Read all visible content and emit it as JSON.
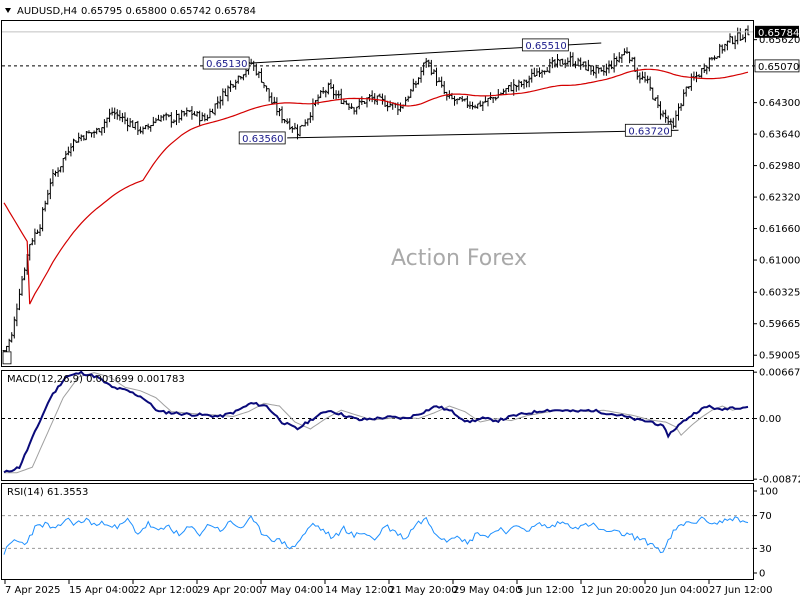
{
  "chart_data": [
    {
      "type": "ohlc",
      "symbol_header": "AUDUSD,H4",
      "ohlc_header": "0.65795 0.65800 0.65742 0.65784",
      "watermark": "Action Forex",
      "y_ticks": [
        "0.65620",
        "0.65070",
        "0.64300",
        "0.63640",
        "0.62980",
        "0.62320",
        "0.61660",
        "0.61000",
        "0.60325",
        "0.59665",
        "0.59005"
      ],
      "y_range": [
        0.588,
        0.6599
      ],
      "last_price": "0.65784",
      "hline_price": "0.65070",
      "hline_label": "0.65070",
      "x_ticks": [
        "7 Apr 2025",
        "15 Apr 04:00",
        "22 Apr 12:00",
        "29 Apr 20:00",
        "7 May 04:00",
        "14 May 12:00",
        "21 May 20:00",
        "29 May 04:00",
        "5 Jun 12:00",
        "12 Jun 20:00",
        "20 Jun 04:00",
        "27 Jun 12:00"
      ],
      "bar_count": 290,
      "close_path": [
        [
          0,
          0.591
        ],
        [
          3,
          0.594
        ],
        [
          6,
          0.6035
        ],
        [
          10,
          0.6135
        ],
        [
          14,
          0.6175
        ],
        [
          18,
          0.6265
        ],
        [
          22,
          0.63
        ],
        [
          26,
          0.6345
        ],
        [
          30,
          0.636
        ],
        [
          36,
          0.637
        ],
        [
          42,
          0.641
        ],
        [
          48,
          0.639
        ],
        [
          54,
          0.637
        ],
        [
          60,
          0.64
        ],
        [
          66,
          0.6395
        ],
        [
          72,
          0.641
        ],
        [
          78,
          0.6395
        ],
        [
          84,
          0.644
        ],
        [
          90,
          0.648
        ],
        [
          94,
          0.65
        ],
        [
          96,
          0.6513
        ],
        [
          100,
          0.648
        ],
        [
          104,
          0.643
        ],
        [
          108,
          0.64
        ],
        [
          112,
          0.638
        ],
        [
          114,
          0.637
        ],
        [
          118,
          0.64
        ],
        [
          122,
          0.644
        ],
        [
          126,
          0.646
        ],
        [
          130,
          0.644
        ],
        [
          136,
          0.642
        ],
        [
          142,
          0.644
        ],
        [
          148,
          0.643
        ],
        [
          154,
          0.642
        ],
        [
          160,
          0.647
        ],
        [
          164,
          0.652
        ],
        [
          168,
          0.648
        ],
        [
          172,
          0.644
        ],
        [
          178,
          0.643
        ],
        [
          184,
          0.6425
        ],
        [
          190,
          0.644
        ],
        [
          196,
          0.646
        ],
        [
          202,
          0.647
        ],
        [
          208,
          0.65
        ],
        [
          214,
          0.651
        ],
        [
          220,
          0.652
        ],
        [
          226,
          0.6505
        ],
        [
          232,
          0.649
        ],
        [
          238,
          0.652
        ],
        [
          242,
          0.654
        ],
        [
          246,
          0.649
        ],
        [
          250,
          0.647
        ],
        [
          254,
          0.642
        ],
        [
          258,
          0.639
        ],
        [
          260,
          0.6375
        ],
        [
          262,
          0.642
        ],
        [
          266,
          0.647
        ],
        [
          270,
          0.649
        ],
        [
          274,
          0.652
        ],
        [
          278,
          0.654
        ],
        [
          282,
          0.656
        ],
        [
          286,
          0.657
        ],
        [
          289,
          0.6578
        ]
      ],
      "annotations": [
        {
          "label": "0.65130",
          "price": 0.6513,
          "bar": 96
        },
        {
          "label": "0.63560",
          "price": 0.6356,
          "bar": 110
        },
        {
          "label": "0.65510",
          "price": 0.6551,
          "bar": 220
        },
        {
          "label": "0.63720",
          "price": 0.6372,
          "bar": 260
        },
        {
          "label": "",
          "price": 0.5895,
          "bar": 0
        }
      ],
      "channel_upper": [
        [
          96,
          0.6513
        ],
        [
          232,
          0.6555
        ]
      ],
      "channel_lower": [
        [
          110,
          0.6356
        ],
        [
          262,
          0.6372
        ]
      ],
      "colors": {
        "candle": "#000000",
        "ma": "#d40000",
        "hline": "#000000"
      }
    },
    {
      "type": "line",
      "title": "MACD(12,26,9) 0.001699 0.001783",
      "y_ticks": [
        "0.006675",
        "0.00",
        "-0.008724"
      ],
      "y_range": [
        -0.0087,
        0.0067
      ],
      "macd_path": [
        [
          0,
          -0.0078
        ],
        [
          6,
          -0.007
        ],
        [
          12,
          -0.002
        ],
        [
          18,
          0.003
        ],
        [
          24,
          0.006
        ],
        [
          30,
          0.0066
        ],
        [
          36,
          0.006
        ],
        [
          42,
          0.0045
        ],
        [
          48,
          0.004
        ],
        [
          54,
          0.003
        ],
        [
          60,
          0.001
        ],
        [
          66,
          0.0008
        ],
        [
          72,
          0.0006
        ],
        [
          78,
          0.0005
        ],
        [
          84,
          0.0003
        ],
        [
          90,
          0.001
        ],
        [
          96,
          0.0022
        ],
        [
          102,
          0.0018
        ],
        [
          108,
          -0.0005
        ],
        [
          114,
          -0.0015
        ],
        [
          120,
          0.0
        ],
        [
          126,
          0.0012
        ],
        [
          132,
          0.0005
        ],
        [
          138,
          -0.0002
        ],
        [
          144,
          0.0
        ],
        [
          150,
          0.0002
        ],
        [
          156,
          0.0
        ],
        [
          162,
          0.0008
        ],
        [
          168,
          0.0018
        ],
        [
          174,
          0.001
        ],
        [
          180,
          -0.0005
        ],
        [
          186,
          0.0
        ],
        [
          192,
          -0.0003
        ],
        [
          198,
          0.0004
        ],
        [
          204,
          0.0008
        ],
        [
          210,
          0.0012
        ],
        [
          216,
          0.0012
        ],
        [
          222,
          0.001
        ],
        [
          228,
          0.0012
        ],
        [
          234,
          0.0008
        ],
        [
          240,
          0.0004
        ],
        [
          246,
          -0.0002
        ],
        [
          252,
          -0.0005
        ],
        [
          256,
          -0.0012
        ],
        [
          258,
          -0.0024
        ],
        [
          262,
          -0.001
        ],
        [
          266,
          0.0002
        ],
        [
          270,
          0.0012
        ],
        [
          274,
          0.0018
        ],
        [
          278,
          0.0012
        ],
        [
          282,
          0.0016
        ],
        [
          286,
          0.0016
        ],
        [
          289,
          0.0017
        ]
      ],
      "colors": {
        "macd": "#0a0a7a",
        "signal": "#a0a0a0"
      }
    },
    {
      "type": "line",
      "title": "RSI(14) 61.3553",
      "y_ticks": [
        "100",
        "70",
        "30",
        "0"
      ],
      "y_range": [
        0,
        100
      ],
      "rsi_path": [
        [
          0,
          25
        ],
        [
          4,
          40
        ],
        [
          8,
          35
        ],
        [
          12,
          55
        ],
        [
          16,
          60
        ],
        [
          20,
          52
        ],
        [
          24,
          66
        ],
        [
          28,
          60
        ],
        [
          32,
          65
        ],
        [
          36,
          58
        ],
        [
          40,
          62
        ],
        [
          44,
          54
        ],
        [
          48,
          65
        ],
        [
          52,
          48
        ],
        [
          56,
          60
        ],
        [
          60,
          50
        ],
        [
          64,
          58
        ],
        [
          68,
          45
        ],
        [
          72,
          56
        ],
        [
          76,
          48
        ],
        [
          80,
          60
        ],
        [
          84,
          52
        ],
        [
          88,
          62
        ],
        [
          92,
          55
        ],
        [
          96,
          66
        ],
        [
          100,
          50
        ],
        [
          104,
          42
        ],
        [
          108,
          38
        ],
        [
          112,
          30
        ],
        [
          116,
          45
        ],
        [
          120,
          60
        ],
        [
          124,
          52
        ],
        [
          128,
          42
        ],
        [
          132,
          55
        ],
        [
          136,
          45
        ],
        [
          140,
          50
        ],
        [
          144,
          40
        ],
        [
          148,
          58
        ],
        [
          152,
          50
        ],
        [
          156,
          42
        ],
        [
          160,
          60
        ],
        [
          164,
          66
        ],
        [
          168,
          48
        ],
        [
          172,
          40
        ],
        [
          176,
          48
        ],
        [
          180,
          35
        ],
        [
          184,
          50
        ],
        [
          188,
          44
        ],
        [
          192,
          55
        ],
        [
          196,
          50
        ],
        [
          200,
          58
        ],
        [
          204,
          52
        ],
        [
          208,
          60
        ],
        [
          212,
          55
        ],
        [
          216,
          62
        ],
        [
          220,
          58
        ],
        [
          224,
          56
        ],
        [
          228,
          60
        ],
        [
          232,
          52
        ],
        [
          236,
          50
        ],
        [
          240,
          48
        ],
        [
          244,
          45
        ],
        [
          248,
          40
        ],
        [
          252,
          35
        ],
        [
          256,
          25
        ],
        [
          260,
          50
        ],
        [
          264,
          60
        ],
        [
          268,
          62
        ],
        [
          272,
          66
        ],
        [
          276,
          60
        ],
        [
          280,
          64
        ],
        [
          284,
          68
        ],
        [
          286,
          62
        ],
        [
          289,
          61
        ]
      ],
      "colors": {
        "rsi": "#1e90ff"
      }
    }
  ]
}
